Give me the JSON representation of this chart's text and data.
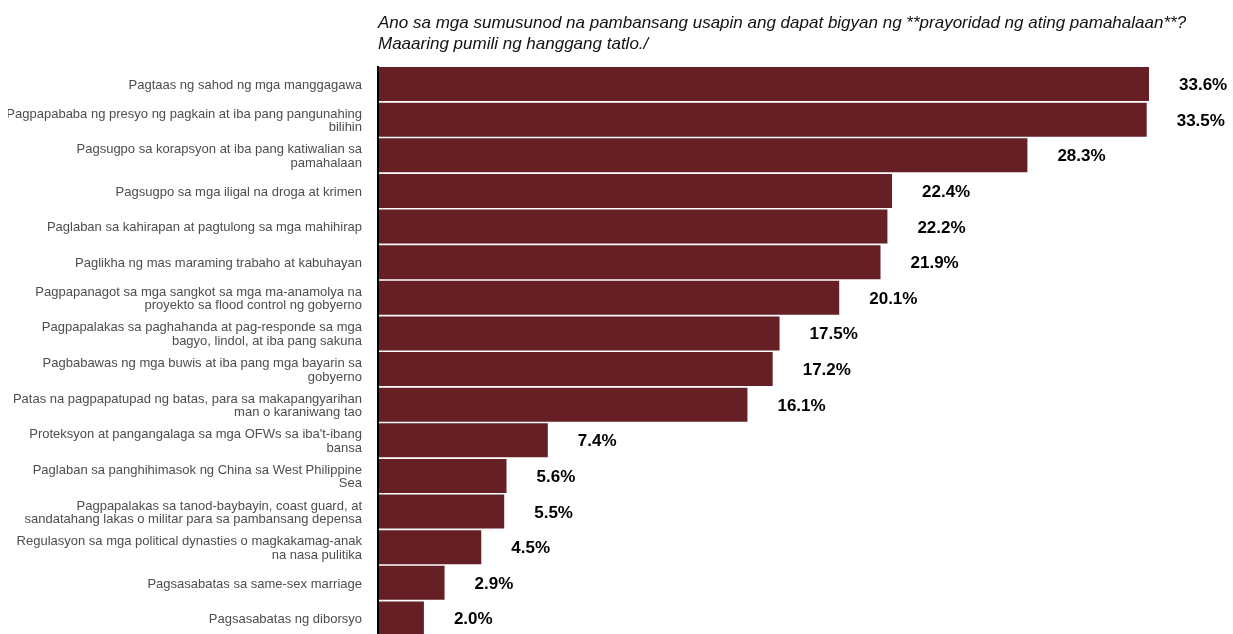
{
  "chart_data": {
    "type": "bar",
    "orientation": "horizontal",
    "subtitle": "Ano sa mga sumusunod na pambansang usapin ang dapat bigyan ng **prayoridad ng ating pamahalaan**? Maaaring pumili ng hanggang tatlo./",
    "categories": [
      "Pagtaas ng sahod ng mga manggagawa",
      "Pagpapababa ng presyo ng pagkain at iba pang pangunahing bilihin",
      "Pagsugpo sa korapsyon at iba pang katiwalian sa pamahalaan",
      "Pagsugpo sa mga iligal na droga at krimen",
      "Paglaban sa kahirapan at pagtulong sa mga mahihirap",
      "Paglikha ng mas maraming trabaho at kabuhayan",
      "Pagpapanagot sa mga sangkot sa mga ma-anamolya na proyekto sa flood control ng gobyerno",
      "Pagpapalakas sa paghahanda at pag-responde sa mga bagyo, lindol, at iba pang sakuna",
      "Pagbabawas ng mga buwis at iba pang mga bayarin sa gobyerno",
      "Patas na pagpapatupad ng batas, para sa makapangyarihan man o karaniwang tao",
      "Proteksyon at pangangalaga sa mga OFWs sa iba't-ibang bansa",
      "Paglaban sa panghihimasok ng China sa West Philippine Sea",
      "Pagpapalakas sa tanod-baybayin, coast guard, at sandatahang lakas o militar para sa pambansang depensa",
      "Regulasyon sa mga political dynasties o magkakamag-anak na nasa pulitika",
      "Pagsasabatas sa same-sex marriage",
      "Pagsasabatas ng diborsyo"
    ],
    "values": [
      33.6,
      33.5,
      28.3,
      22.4,
      22.2,
      21.9,
      20.1,
      17.5,
      17.2,
      16.1,
      7.4,
      5.6,
      5.5,
      4.5,
      2.9,
      2.0
    ],
    "value_labels": [
      "33.6%",
      "33.5%",
      "28.3%",
      "22.4%",
      "22.2%",
      "21.9%",
      "20.1%",
      "17.5%",
      "17.2%",
      "16.1%",
      "7.4%",
      "5.6%",
      "5.5%",
      "4.5%",
      "2.9%",
      "2.0%"
    ],
    "color": "#661f24",
    "grid": false,
    "legend": false
  }
}
